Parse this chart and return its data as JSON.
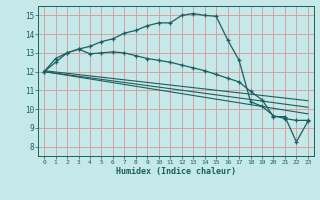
{
  "bg_color": "#c5e8e8",
  "grid_color": "#d4a0a0",
  "line_color": "#1a6060",
  "xlabel": "Humidex (Indice chaleur)",
  "xlim": [
    -0.5,
    23.5
  ],
  "ylim": [
    7.5,
    15.5
  ],
  "yticks": [
    8,
    9,
    10,
    11,
    12,
    13,
    14,
    15
  ],
  "xticks": [
    0,
    1,
    2,
    3,
    4,
    5,
    6,
    7,
    8,
    9,
    10,
    11,
    12,
    13,
    14,
    15,
    16,
    17,
    18,
    19,
    20,
    21,
    22,
    23
  ],
  "curve1_x": [
    0,
    1,
    2,
    3,
    4,
    5,
    6,
    7,
    8,
    9,
    10,
    11,
    12,
    13,
    14,
    15,
    16,
    17,
    18,
    19,
    20,
    21,
    22,
    23
  ],
  "curve1_y": [
    12.0,
    12.7,
    13.0,
    13.2,
    13.35,
    13.6,
    13.75,
    14.05,
    14.2,
    14.45,
    14.6,
    14.6,
    15.0,
    15.1,
    15.0,
    14.95,
    13.7,
    12.6,
    10.4,
    10.15,
    9.65,
    9.5,
    9.4,
    9.4
  ],
  "curve2_x": [
    0,
    1,
    2,
    3,
    4,
    5,
    6,
    7,
    8,
    9,
    10,
    11,
    12,
    13,
    14,
    15,
    16,
    17,
    18,
    19,
    20,
    21,
    22,
    23
  ],
  "curve2_y": [
    12.0,
    12.5,
    13.0,
    13.2,
    12.95,
    13.0,
    13.05,
    13.0,
    12.85,
    12.7,
    12.6,
    12.5,
    12.35,
    12.2,
    12.05,
    11.85,
    11.65,
    11.45,
    10.95,
    10.5,
    9.6,
    9.6,
    8.25,
    9.35
  ],
  "line1_x": [
    0,
    23
  ],
  "line1_y": [
    12.05,
    10.45
  ],
  "line2_x": [
    0,
    23
  ],
  "line2_y": [
    12.0,
    10.1
  ],
  "line3_x": [
    0,
    23
  ],
  "line3_y": [
    12.0,
    9.75
  ]
}
